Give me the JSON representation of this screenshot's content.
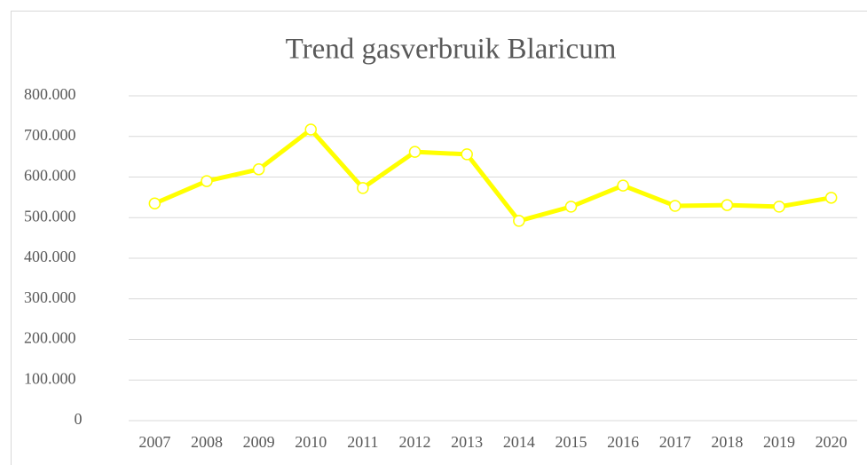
{
  "chart_data": {
    "type": "line",
    "title": "Trend gasverbruik Blaricum",
    "categories": [
      "2007",
      "2008",
      "2009",
      "2010",
      "2011",
      "2012",
      "2013",
      "2014",
      "2015",
      "2016",
      "2017",
      "2018",
      "2019",
      "2020"
    ],
    "series": [
      {
        "name": "Gasverbruik",
        "color": "#ffff00",
        "values": [
          535000,
          590000,
          619000,
          717000,
          573000,
          662000,
          656000,
          492000,
          527000,
          579000,
          529000,
          531000,
          527000,
          549000
        ]
      }
    ],
    "ylim": [
      0,
      800000
    ],
    "yticks": [
      0,
      {
        "value": 100000,
        "label": "100.000"
      },
      {
        "value": 200000,
        "label": "200.000"
      },
      {
        "value": 300000,
        "label": "300.000"
      },
      {
        "value": 400000,
        "label": "400.000"
      },
      {
        "value": 500000,
        "label": "500.000"
      },
      {
        "value": 600000,
        "label": "600.000"
      },
      {
        "value": 700000,
        "label": "700.000"
      },
      {
        "value": 800000,
        "label": "800.000"
      }
    ],
    "grid": true
  }
}
